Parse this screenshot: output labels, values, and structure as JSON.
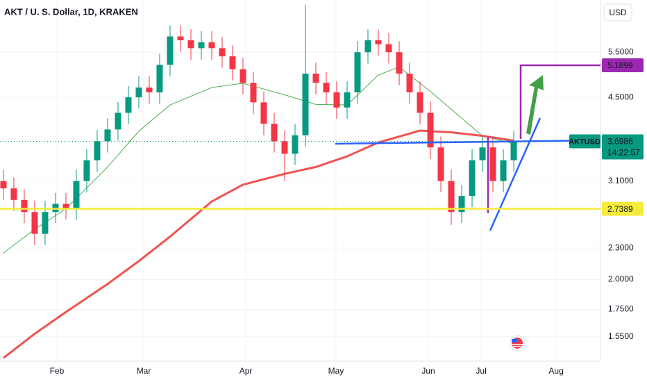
{
  "chart_data": {
    "type": "candlestick",
    "title": "AKT / U. S. Dollar, 1D, KRAKEN",
    "currency": "USD",
    "log_scale": true,
    "grid": true,
    "up_color": "#089981",
    "down_color": "#f23645",
    "open": [
      3.1,
      3.0,
      2.85,
      2.7,
      2.45,
      2.7,
      2.8,
      2.75,
      3.1,
      3.4,
      3.7,
      3.9,
      4.2,
      4.5,
      4.7,
      4.6,
      5.2,
      5.9,
      5.8,
      5.6,
      5.75,
      5.6,
      5.4,
      5.1,
      4.8,
      4.4,
      4.0,
      3.7,
      3.5,
      3.8,
      5.0,
      4.8,
      4.6,
      4.3,
      4.6,
      5.5,
      5.8,
      5.7,
      5.5,
      5.0,
      4.6,
      4.2,
      3.6,
      3.1,
      2.7,
      2.9,
      3.4,
      3.6,
      3.1,
      3.4
    ],
    "high": [
      3.26,
      3.15,
      2.99,
      2.84,
      2.84,
      2.94,
      2.94,
      3.26,
      3.57,
      3.89,
      4.1,
      4.41,
      4.73,
      4.94,
      4.94,
      5.46,
      6.2,
      6.2,
      6.09,
      6.04,
      6.04,
      5.88,
      5.67,
      5.36,
      5.04,
      4.62,
      4.2,
      3.89,
      3.99,
      6.8,
      5.25,
      5.04,
      4.83,
      4.83,
      5.78,
      6.09,
      6.09,
      5.99,
      5.78,
      5.25,
      4.83,
      4.41,
      3.78,
      3.26,
      3.05,
      3.57,
      3.78,
      3.78,
      3.57,
      3.88
    ],
    "low": [
      2.85,
      2.71,
      2.57,
      2.33,
      2.33,
      2.57,
      2.61,
      2.61,
      2.95,
      3.23,
      3.52,
      3.71,
      3.99,
      4.28,
      4.37,
      4.37,
      4.94,
      5.51,
      5.32,
      5.32,
      5.32,
      5.13,
      4.85,
      4.56,
      4.18,
      3.8,
      3.52,
      3.1,
      3.33,
      3.61,
      4.56,
      4.37,
      4.09,
      4.09,
      4.37,
      5.23,
      5.42,
      5.23,
      4.75,
      4.37,
      3.99,
      3.42,
      2.95,
      2.55,
      2.57,
      2.76,
      3.23,
      2.95,
      2.95,
      3.23
    ],
    "close": [
      3.0,
      2.85,
      2.7,
      2.45,
      2.7,
      2.8,
      2.75,
      3.1,
      3.4,
      3.7,
      3.9,
      4.2,
      4.5,
      4.7,
      4.6,
      5.2,
      5.9,
      5.8,
      5.6,
      5.75,
      5.6,
      5.4,
      5.1,
      4.8,
      4.4,
      4.0,
      3.7,
      3.5,
      3.8,
      5.0,
      4.8,
      4.6,
      4.3,
      4.6,
      5.5,
      5.8,
      5.7,
      5.5,
      5.0,
      4.6,
      4.2,
      3.6,
      3.1,
      2.7,
      2.9,
      3.4,
      3.6,
      3.1,
      3.4,
      3.6986
    ],
    "series": [
      {
        "color": "#4caf50",
        "width": 1,
        "x": [
          0,
          3,
          6,
          10,
          13,
          16,
          20,
          23,
          27,
          30,
          33,
          36,
          38,
          41,
          44,
          46,
          49
        ],
        "values": [
          2.25,
          2.5,
          2.74,
          3.3,
          3.87,
          4.35,
          4.7,
          4.79,
          4.55,
          4.36,
          4.35,
          4.97,
          5.15,
          4.62,
          4.1,
          3.79,
          3.66
        ]
      },
      {
        "color": "#f0534f",
        "width": 3,
        "x": [
          0,
          3,
          6,
          10,
          13,
          16,
          20,
          23,
          27,
          30,
          33,
          36,
          40,
          43,
          46,
          49
        ],
        "values": [
          1.41,
          1.57,
          1.73,
          1.96,
          2.17,
          2.42,
          2.83,
          3.05,
          3.2,
          3.3,
          3.46,
          3.68,
          3.88,
          3.85,
          3.79,
          3.71
        ]
      }
    ],
    "xlim": [
      -0.33,
      57.33
    ],
    "xticks": [
      {
        "value": 5.13,
        "label": "Feb"
      },
      {
        "value": 13.47,
        "label": "Mar"
      },
      {
        "value": 23.27,
        "label": "Apr"
      },
      {
        "value": 31.93,
        "label": "May"
      },
      {
        "value": 40.8,
        "label": "Jun"
      },
      {
        "value": 45.87,
        "label": "Jul"
      },
      {
        "value": 53.07,
        "label": "Aug"
      }
    ],
    "ylim": [
      1.39,
      6.94
    ],
    "yticks": [
      {
        "value": 5.5,
        "label": "5.5000"
      },
      {
        "value": 4.5,
        "label": "4.5000"
      },
      {
        "value": 3.1,
        "label": "3.1000"
      },
      {
        "value": 2.3,
        "label": "2.3000"
      },
      {
        "value": 2.0,
        "label": "2.0000"
      },
      {
        "value": 1.75,
        "label": "1.7500"
      },
      {
        "value": 1.55,
        "label": "1.5500"
      }
    ],
    "levels": [
      {
        "value": 5.1899,
        "color": "#9c27b0",
        "text_color": "#ffffff"
      },
      {
        "value": 2.7389,
        "color": "#f5eb3b",
        "text_color": "#131722"
      }
    ],
    "last_price": {
      "symbol": "AKTUSD",
      "value": 3.6986,
      "countdown": "14:22:57",
      "color": "#089981"
    }
  }
}
